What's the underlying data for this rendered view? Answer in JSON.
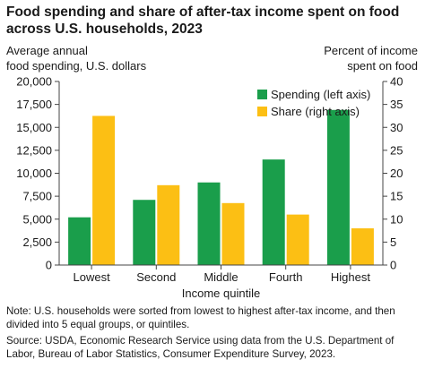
{
  "chart_data": {
    "type": "bar",
    "title": "Food spending and share of after-tax income spent on food across U.S. households, 2023",
    "ylabel_left_line1": "Average annual",
    "ylabel_left_line2": "food spending, U.S. dollars",
    "ylabel_right_line1": "Percent of income",
    "ylabel_right_line2": "spent on food",
    "xlabel": "Income quintile",
    "categories": [
      "Lowest",
      "Second",
      "Middle",
      "Fourth",
      "Highest"
    ],
    "y_left_lim": [
      0,
      20000
    ],
    "y_right_lim": [
      0,
      40
    ],
    "y_left_ticks": [
      "0",
      "2,500",
      "5,000",
      "7,500",
      "10,000",
      "12,500",
      "15,000",
      "17,500",
      "20,000"
    ],
    "y_right_ticks": [
      "0",
      "5",
      "10",
      "15",
      "20",
      "25",
      "30",
      "35",
      "40"
    ],
    "legend_position": "top-right",
    "grid": false,
    "series": [
      {
        "name": "Spending (left axis)",
        "axis": "left",
        "color": "#1a9e4b",
        "values": [
          5200,
          7100,
          9000,
          11500,
          16900
        ]
      },
      {
        "name": "Share (right axis)",
        "axis": "right",
        "color": "#fcbf14",
        "values": [
          32.5,
          17.4,
          13.5,
          11.0,
          8.0
        ]
      }
    ]
  },
  "note": "Note: U.S. households were sorted from lowest to highest after-tax income, and then divided into 5 equal groups, or quintiles.",
  "source": "Source: USDA, Economic Research Service using data from the U.S. Department of Labor, Bureau of Labor Statistics, Consumer Expenditure Survey, 2023."
}
